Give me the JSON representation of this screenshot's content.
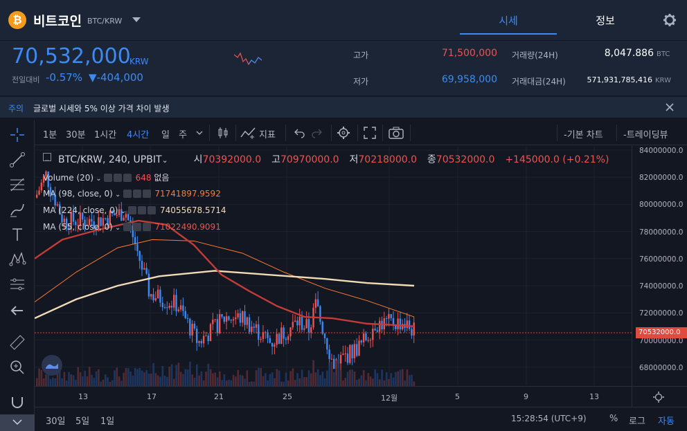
{
  "header": {
    "coin_logo_glyph": "₿",
    "coin_name": "비트코인",
    "pair": "BTC/KRW",
    "tabs": [
      {
        "label": "시세"
      },
      {
        "label": "정보"
      }
    ],
    "accent": "#3d8bf2"
  },
  "summary": {
    "price": "70,532,000",
    "unit": "KRW",
    "change_label": "전일대비",
    "change_pct": "-0.57%",
    "change_abs": "▼-404,000",
    "high_label": "고가",
    "high_value": "71,500,000",
    "low_label": "저가",
    "low_value": "69,958,000",
    "volume_label": "거래량(24H)",
    "volume_value": "8,047.886",
    "volume_unit": "BTC",
    "amount_label": "거래대금(24H)",
    "amount_value": "571,931,785,416",
    "amount_unit": "KRW"
  },
  "notice": {
    "tag": "주의",
    "text": "글로벌 시세와 5% 이상 가격 차이 발생"
  },
  "toolbar": {
    "intervals": [
      "1분",
      "30분",
      "1시간",
      "4시간",
      "일",
      "주"
    ],
    "active_interval": "4시간",
    "indicators_label": "지표",
    "basic_chart_label": "-기본 차트",
    "tradingview_label": "-트레이딩뷰"
  },
  "legend": {
    "symbol": "BTC/KRW, 240, UPBIT",
    "o_label": "시",
    "o_value": "70392000.0",
    "h_label": "고",
    "h_value": "70970000.0",
    "l_label": "저",
    "l_value": "70218000.0",
    "c_label": "종",
    "c_value": "70532000.0",
    "change": "+145000.0 (+0.21%)",
    "studies": [
      {
        "name": "Volume (20)",
        "value": "648",
        "extra": "없음",
        "color": "#ef5350"
      },
      {
        "name": "MA (98, close, 0)",
        "value": "71741897.9592",
        "color": "#ff7a33"
      },
      {
        "name": "MA (224, close, 0)",
        "value": "74055678.5714",
        "color": "#f2dcb8"
      },
      {
        "name": "MA (55, close, 0)",
        "value": "71022490.9091",
        "color": "#ef5350"
      }
    ]
  },
  "chart_data": {
    "type": "candlestick",
    "y_axis_ticks": [
      "84000000.0",
      "82000000.0",
      "80000000.0",
      "78000000.0",
      "76000000.0",
      "74000000.0",
      "72000000.0",
      "70000000.0",
      "68000000.0"
    ],
    "ylim": [
      67000000,
      84000000
    ],
    "current_price_tag": "70532000.0",
    "x_axis_ticks": [
      "13",
      "17",
      "21",
      "25",
      "12월",
      "5",
      "9",
      "13"
    ],
    "up_color": "#ef5350",
    "down_color": "#3d8bf2"
  },
  "bottombar": {
    "ranges": [
      "30일",
      "5일",
      "1일"
    ],
    "time": "15:28:54 (UTC+9)",
    "pct_label": "%",
    "log_label": "로그",
    "auto_label": "자동"
  }
}
